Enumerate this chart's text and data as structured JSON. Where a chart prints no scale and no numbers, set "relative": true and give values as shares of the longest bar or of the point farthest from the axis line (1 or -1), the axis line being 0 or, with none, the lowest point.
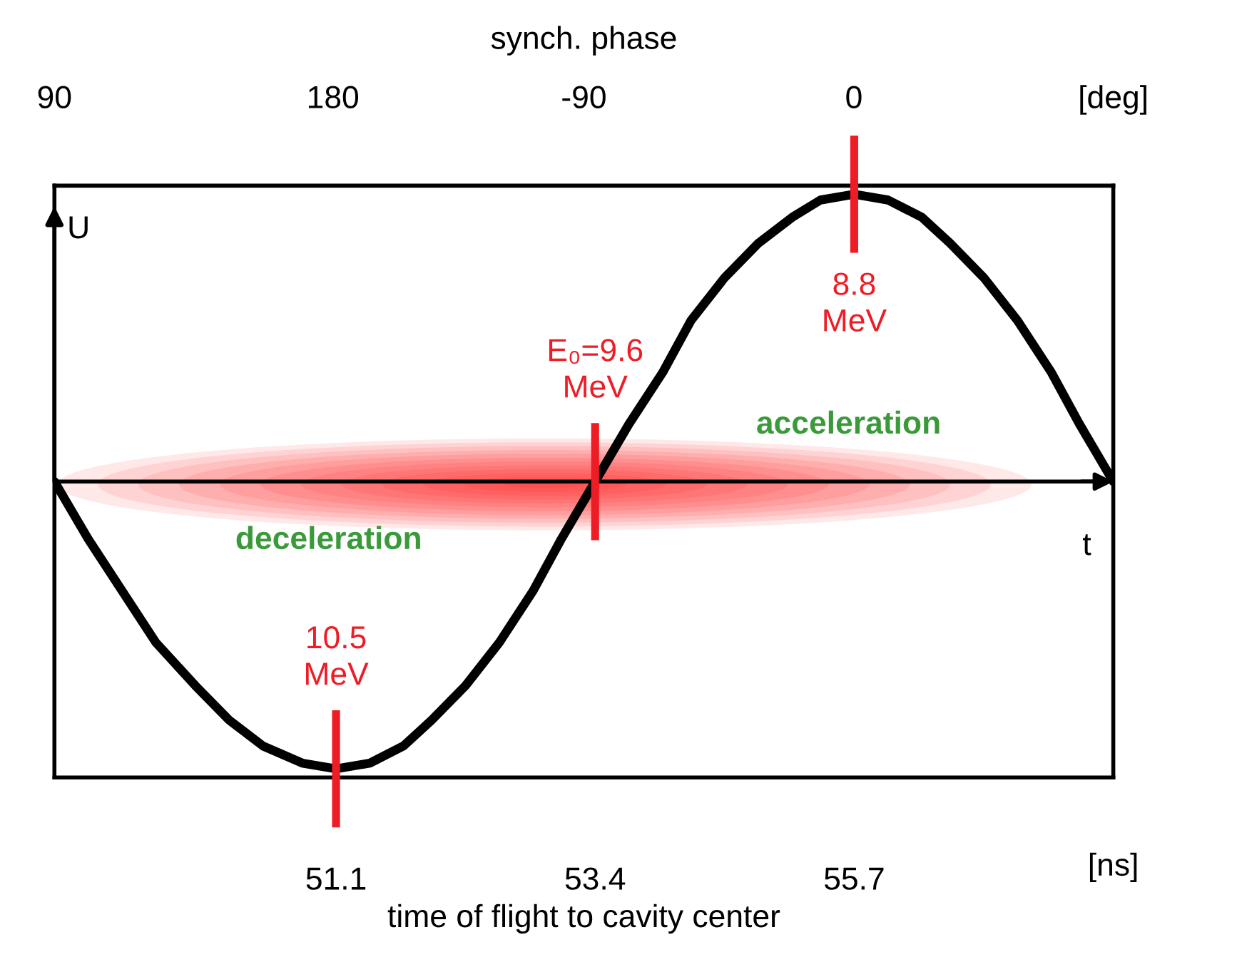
{
  "chart_data": {
    "type": "line",
    "relative": true,
    "xlabel": "time of flight to cavity center",
    "ylabel": "U",
    "xlim": [
      48.6,
      58.0
    ],
    "xticks": [
      51.1,
      53.4,
      55.7
    ],
    "series": [
      {
        "color": "#000000",
        "x": [
          48.6,
          48.9,
          49.2,
          49.5,
          49.85,
          50.15,
          50.45,
          50.8,
          51.1,
          51.4,
          51.7,
          51.95,
          52.25,
          52.55,
          52.85,
          53.1,
          53.4,
          53.7,
          54.0,
          54.25,
          54.55,
          54.85,
          55.15,
          55.4,
          55.7,
          56.0,
          56.3,
          56.55,
          56.85,
          57.15,
          57.45,
          57.7,
          58.0
        ],
        "values": [
          0,
          -0.2,
          -0.38,
          -0.56,
          -0.71,
          -0.83,
          -0.92,
          -0.98,
          -1,
          -0.98,
          -0.92,
          -0.83,
          -0.71,
          -0.56,
          -0.38,
          -0.2,
          0,
          0.2,
          0.38,
          0.56,
          0.71,
          0.83,
          0.92,
          0.98,
          1,
          0.98,
          0.92,
          0.83,
          0.71,
          0.56,
          0.38,
          0.2,
          0
        ]
      }
    ],
    "ref_lines": [
      {
        "axis": "x",
        "value": 51.1,
        "color": "#ee1c25"
      },
      {
        "axis": "x",
        "value": 53.4,
        "color": "#ee1c25"
      },
      {
        "axis": "x",
        "value": 55.7,
        "color": "#ee1c25"
      }
    ],
    "annotations": [
      {
        "text": "10.5\nMeV",
        "x": 51.1,
        "y": -1
      },
      {
        "text": "E₀=9.6\nMeV",
        "x": 53.4,
        "y": 0
      },
      {
        "text": "8.8\nMeV",
        "x": 55.7,
        "y": 1
      },
      "deceleration",
      "acceleration",
      "t",
      "[deg]",
      "[ns]",
      "synch. phase",
      "90",
      "180",
      "-90",
      "0"
    ],
    "grid": false
  }
}
